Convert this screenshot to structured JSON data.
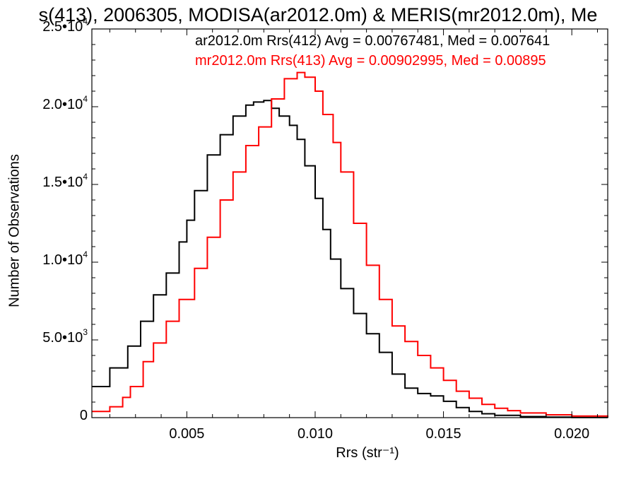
{
  "chart_data": {
    "type": "line",
    "title": "s(413), 2006305, MODISA(ar2012.0m) & MERIS(mr2012.0m), Me",
    "xlabel": "Rrs (str⁻¹)",
    "ylabel": "Number of Observations",
    "xlim": [
      0.0013,
      0.0214
    ],
    "ylim": [
      0,
      25000
    ],
    "x_ticks": [
      {
        "value": 0.005,
        "label": "0.005"
      },
      {
        "value": 0.01,
        "label": "0.010"
      },
      {
        "value": 0.015,
        "label": "0.015"
      },
      {
        "value": 0.02,
        "label": "0.020"
      }
    ],
    "y_ticks": [
      {
        "value": 0,
        "label": "0",
        "exp": ""
      },
      {
        "value": 5000,
        "label": "5.0•10",
        "exp": "3"
      },
      {
        "value": 10000,
        "label": "1.0•10",
        "exp": "4"
      },
      {
        "value": 15000,
        "label": "1.5•10",
        "exp": "4"
      },
      {
        "value": 20000,
        "label": "2.0•10",
        "exp": "4"
      },
      {
        "value": 25000,
        "label": "2.5•10",
        "exp": "4"
      }
    ],
    "legend_placement": "top-right",
    "series": [
      {
        "name": "ar2012.0m Rrs(412) Avg = 0.00767481, Med = 0.007641",
        "color": "#000000",
        "points": [
          [
            0.0013,
            2000
          ],
          [
            0.002,
            3200
          ],
          [
            0.0027,
            4600
          ],
          [
            0.0032,
            6200
          ],
          [
            0.0037,
            7900
          ],
          [
            0.0042,
            9300
          ],
          [
            0.0047,
            11300
          ],
          [
            0.005,
            12700
          ],
          [
            0.0053,
            14600
          ],
          [
            0.0058,
            16900
          ],
          [
            0.0063,
            18200
          ],
          [
            0.0068,
            19400
          ],
          [
            0.0073,
            20100
          ],
          [
            0.0076,
            20300
          ],
          [
            0.008,
            20400
          ],
          [
            0.0083,
            19900
          ],
          [
            0.0086,
            19400
          ],
          [
            0.009,
            18800
          ],
          [
            0.0093,
            17900
          ],
          [
            0.0096,
            16200
          ],
          [
            0.01,
            14100
          ],
          [
            0.0103,
            12100
          ],
          [
            0.0106,
            10200
          ],
          [
            0.011,
            8300
          ],
          [
            0.0115,
            6700
          ],
          [
            0.012,
            5400
          ],
          [
            0.0125,
            4200
          ],
          [
            0.013,
            2800
          ],
          [
            0.0135,
            1900
          ],
          [
            0.014,
            1550
          ],
          [
            0.0145,
            1400
          ],
          [
            0.015,
            1050
          ],
          [
            0.0155,
            650
          ],
          [
            0.016,
            400
          ],
          [
            0.0165,
            250
          ],
          [
            0.017,
            150
          ],
          [
            0.018,
            70
          ],
          [
            0.019,
            30
          ],
          [
            0.02,
            12
          ],
          [
            0.0214,
            5
          ]
        ]
      },
      {
        "name": "mr2012.0m Rrs(413) Avg = 0.00902995, Med = 0.00895",
        "color": "#ff0000",
        "points": [
          [
            0.0013,
            400
          ],
          [
            0.002,
            700
          ],
          [
            0.0025,
            1300
          ],
          [
            0.0028,
            2000
          ],
          [
            0.0033,
            3600
          ],
          [
            0.0037,
            4800
          ],
          [
            0.0042,
            6200
          ],
          [
            0.0047,
            7600
          ],
          [
            0.0053,
            9600
          ],
          [
            0.0058,
            11600
          ],
          [
            0.0063,
            14000
          ],
          [
            0.0068,
            15800
          ],
          [
            0.0073,
            17500
          ],
          [
            0.0078,
            18700
          ],
          [
            0.0083,
            20500
          ],
          [
            0.0088,
            21800
          ],
          [
            0.0093,
            22200
          ],
          [
            0.0096,
            21900
          ],
          [
            0.01,
            21000
          ],
          [
            0.0103,
            19500
          ],
          [
            0.0107,
            17700
          ],
          [
            0.011,
            15800
          ],
          [
            0.0115,
            12500
          ],
          [
            0.012,
            9800
          ],
          [
            0.0125,
            7600
          ],
          [
            0.013,
            5900
          ],
          [
            0.0135,
            4900
          ],
          [
            0.014,
            4000
          ],
          [
            0.0145,
            3200
          ],
          [
            0.015,
            2400
          ],
          [
            0.0155,
            1700
          ],
          [
            0.016,
            1250
          ],
          [
            0.0165,
            850
          ],
          [
            0.017,
            600
          ],
          [
            0.0175,
            450
          ],
          [
            0.018,
            300
          ],
          [
            0.019,
            180
          ],
          [
            0.02,
            100
          ],
          [
            0.0214,
            40
          ]
        ]
      }
    ]
  }
}
